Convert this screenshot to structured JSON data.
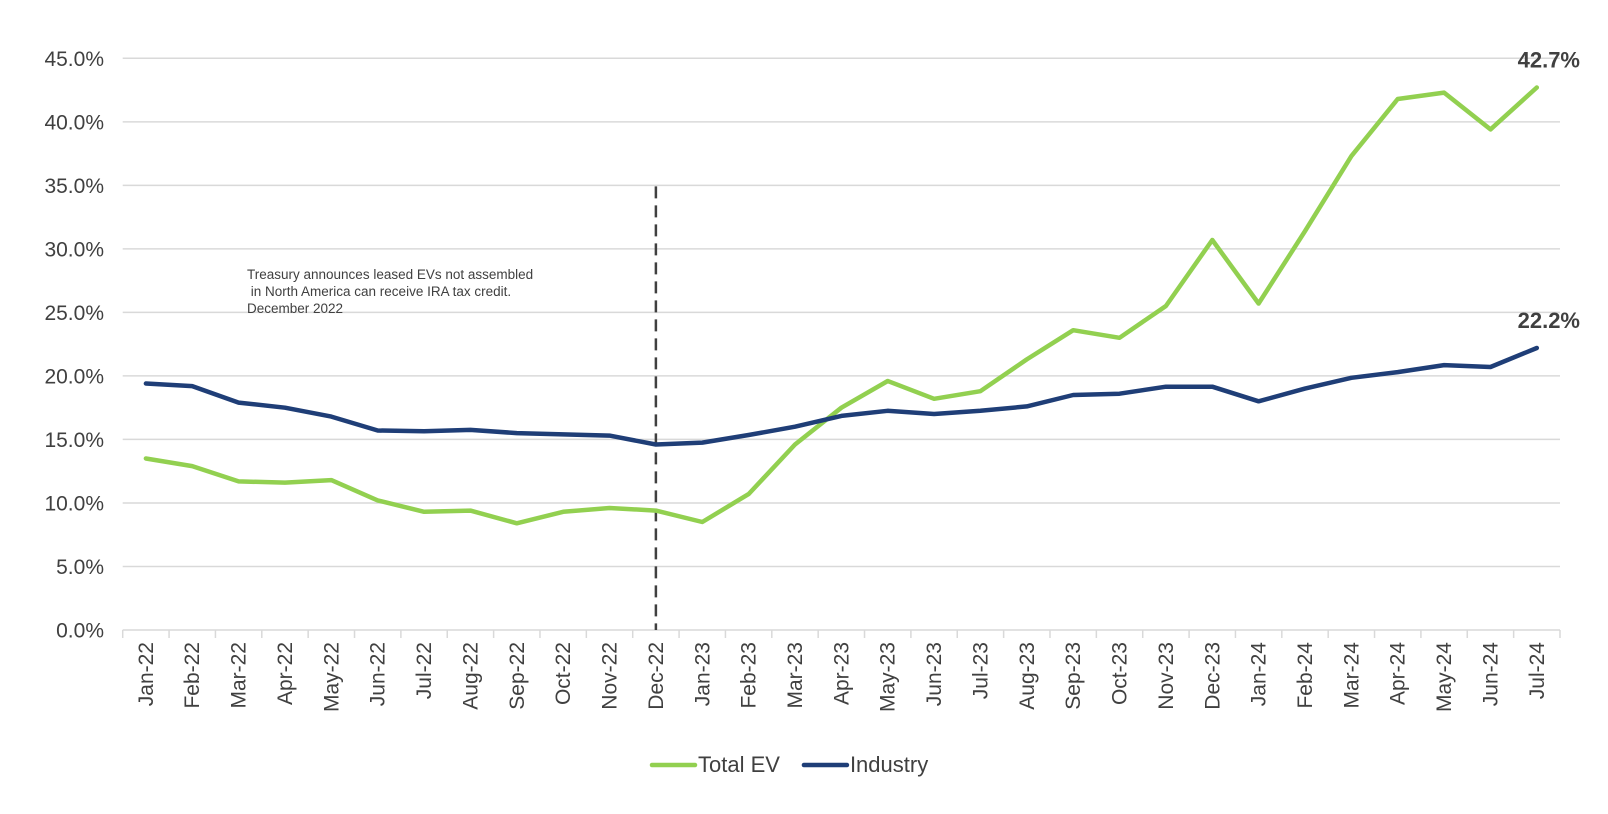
{
  "chart_data": {
    "type": "line",
    "title": "",
    "xlabel": "",
    "ylabel": "",
    "ylim": [
      0,
      45
    ],
    "y_ticks": [
      "0.0%",
      "5.0%",
      "10.0%",
      "15.0%",
      "20.0%",
      "25.0%",
      "30.0%",
      "35.0%",
      "40.0%",
      "45.0%"
    ],
    "y_tick_values": [
      0,
      5,
      10,
      15,
      20,
      25,
      30,
      35,
      40,
      45
    ],
    "grid": "horizontal",
    "legend_position": "bottom-center",
    "categories": [
      "Jan-22",
      "Feb-22",
      "Mar-22",
      "Apr-22",
      "May-22",
      "Jun-22",
      "Jul-22",
      "Aug-22",
      "Sep-22",
      "Oct-22",
      "Nov-22",
      "Dec-22",
      "Jan-23",
      "Feb-23",
      "Mar-23",
      "Apr-23",
      "May-23",
      "Jun-23",
      "Jul-23",
      "Aug-23",
      "Sep-23",
      "Oct-23",
      "Nov-23",
      "Dec-23",
      "Jan-24",
      "Feb-24",
      "Mar-24",
      "Apr-24",
      "May-24",
      "Jun-24",
      "Jul-24"
    ],
    "series": [
      {
        "name": "Total EV",
        "color": "#92D050",
        "values": [
          13.5,
          12.9,
          11.7,
          11.6,
          11.8,
          10.2,
          9.3,
          9.4,
          8.4,
          9.3,
          9.6,
          9.4,
          8.5,
          10.7,
          14.6,
          17.5,
          19.6,
          18.2,
          18.8,
          21.3,
          23.6,
          23.0,
          25.5,
          30.7,
          25.7,
          31.4,
          37.3,
          41.8,
          42.3,
          39.4,
          42.7
        ],
        "end_label": "42.7%"
      },
      {
        "name": "Industry",
        "color": "#1F3E77",
        "values": [
          19.4,
          19.2,
          17.9,
          17.5,
          16.8,
          15.7,
          15.65,
          15.75,
          15.5,
          15.4,
          15.3,
          14.6,
          14.75,
          15.35,
          16.0,
          16.85,
          17.25,
          17.0,
          17.25,
          17.6,
          18.5,
          18.6,
          19.15,
          19.15,
          18.0,
          19.0,
          19.85,
          20.3,
          20.85,
          20.7,
          22.2
        ],
        "end_label": "22.2%"
      }
    ],
    "annotations": [
      {
        "type": "vertical-dashed-line",
        "at_category": "Dec-22",
        "from_value": 0,
        "to_value": 35,
        "color": "#404040"
      },
      {
        "type": "text",
        "lines": [
          "Treasury announces leased EVs not assembled",
          " in North America can receive IRA tax credit.",
          "December 2022"
        ]
      }
    ]
  }
}
